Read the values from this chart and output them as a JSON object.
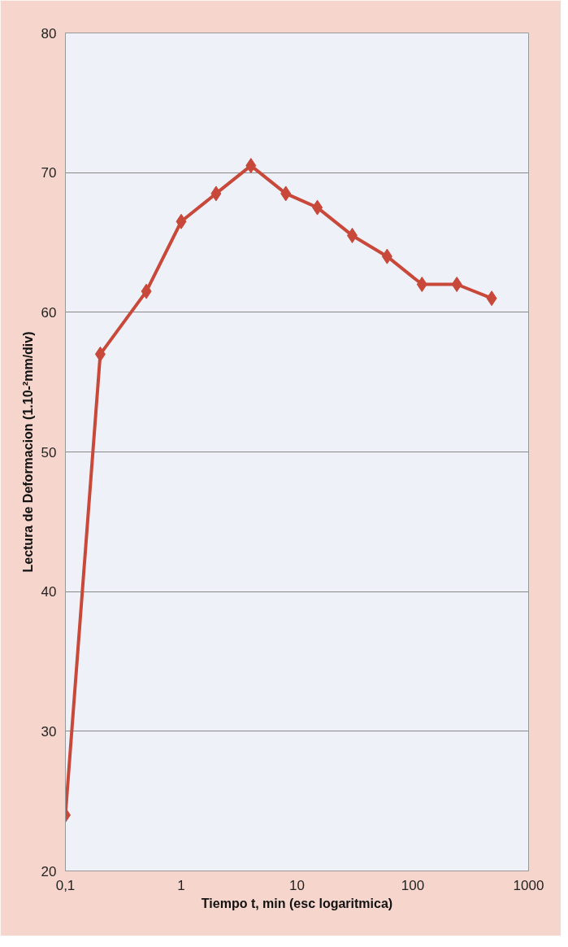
{
  "chart_data": {
    "type": "line",
    "xlabel": "Tiempo t, min (esc logaritmica)",
    "ylabel": "Lectura de Deformacion (1.10-²mm/div)",
    "x": [
      0.1,
      0.2,
      0.5,
      1,
      2,
      4,
      8,
      15,
      30,
      60,
      120,
      240,
      480
    ],
    "series": [
      {
        "color": "#c8483a",
        "values": [
          24,
          57,
          61.5,
          66.5,
          68.5,
          70.5,
          68.5,
          67.5,
          65.5,
          64,
          62,
          62,
          61
        ]
      }
    ],
    "xlim": [
      0.1,
      1000
    ],
    "xticks": [
      {
        "value": 0.1,
        "label": "0,1"
      },
      1,
      10,
      100,
      1000
    ],
    "ylim": [
      20,
      80
    ],
    "yticks": [
      20,
      30,
      40,
      50,
      60,
      70,
      80
    ],
    "log": "x",
    "grid": "y",
    "marker": "diamond",
    "line_style": "solid"
  }
}
